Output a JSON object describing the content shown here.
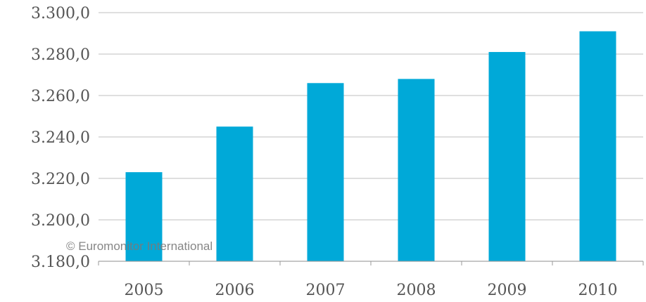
{
  "chart_data": {
    "type": "bar",
    "categories": [
      "2005",
      "2006",
      "2007",
      "2008",
      "2009",
      "2010"
    ],
    "values": [
      3223,
      3245,
      3266,
      3268,
      3281,
      3291
    ],
    "ylim": [
      3180,
      3300
    ],
    "yticks": [
      3180,
      3200,
      3220,
      3240,
      3260,
      3280,
      3300
    ],
    "ytick_labels": [
      "3.180,0",
      "3.200,0",
      "3.220,0",
      "3.240,0",
      "3.260,0",
      "3.280,0",
      "3.300,0"
    ],
    "title": "",
    "xlabel": "",
    "ylabel": "",
    "grid": true,
    "bar_color": "#00A9D8",
    "watermark": "© Euromonitor International"
  }
}
